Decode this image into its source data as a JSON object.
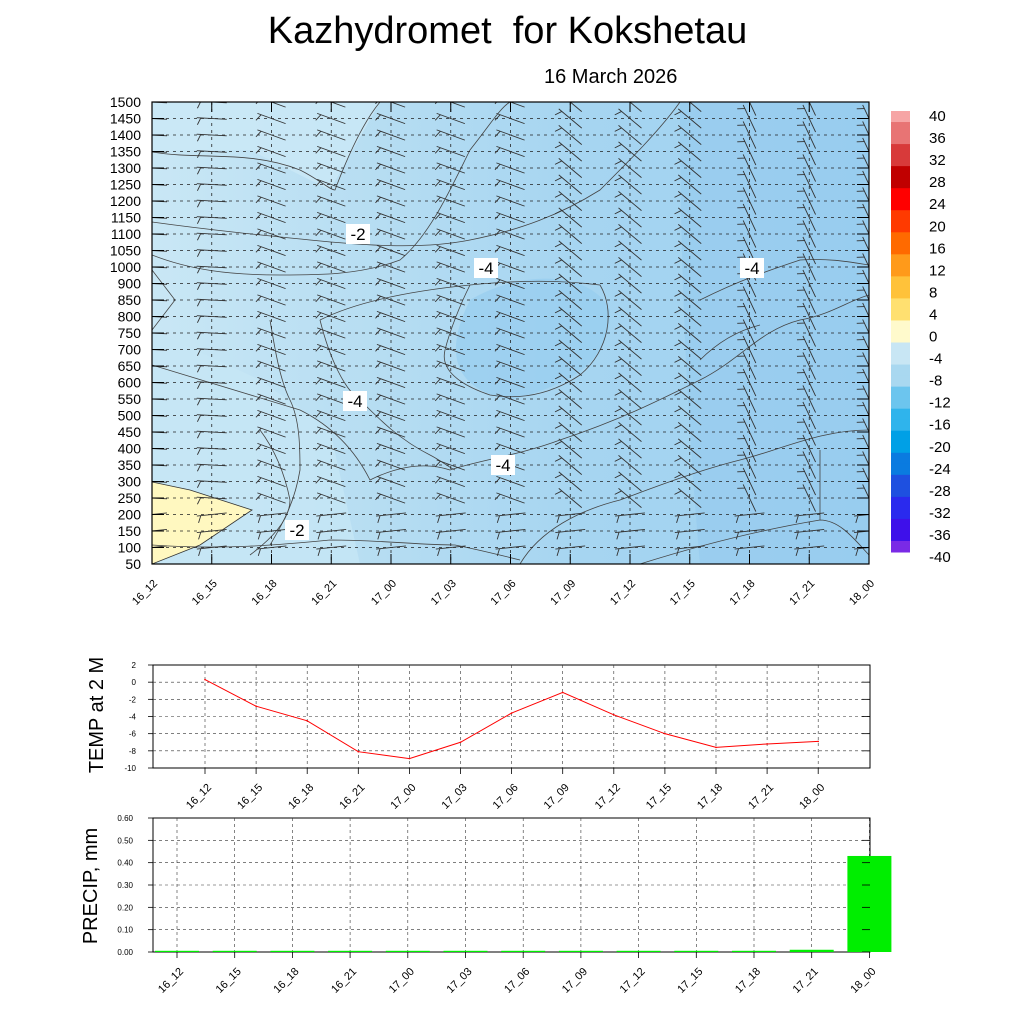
{
  "title": "Kazhydromet  for Kokshetau",
  "subtitle": "16 March 2026",
  "chart_data": [
    {
      "type": "heatmap",
      "name": "Temperature cross-section with wind barbs",
      "x_labels": [
        "16_12",
        "16_15",
        "16_18",
        "16_21",
        "17_00",
        "17_03",
        "17_06",
        "17_09",
        "17_12",
        "17_15",
        "17_18",
        "17_21",
        "18_00"
      ],
      "y_labels": [
        "50",
        "100",
        "150",
        "200",
        "250",
        "300",
        "350",
        "400",
        "450",
        "500",
        "550",
        "600",
        "650",
        "700",
        "750",
        "800",
        "850",
        "900",
        "1000",
        "1050",
        "1100",
        "1150",
        "1200",
        "1250",
        "1300",
        "1350",
        "1400",
        "1450",
        "1500"
      ],
      "contour_labels": [
        "-2",
        "-4",
        "-4",
        "-4",
        "-4",
        "-2"
      ],
      "colorbar": {
        "labels": [
          "40",
          "36",
          "32",
          "28",
          "24",
          "20",
          "16",
          "12",
          "8",
          "4",
          "0",
          "-4",
          "-8",
          "-12",
          "-16",
          "-20",
          "-24",
          "-28",
          "-32",
          "-36",
          "-40"
        ],
        "colors": [
          "#f6a5a5",
          "#e87474",
          "#d83a3a",
          "#c00000",
          "#ff0000",
          "#ff3a00",
          "#ff6a00",
          "#ff9a1a",
          "#ffc23a",
          "#ffe070",
          "#fffacc",
          "#c8e6f4",
          "#a9d8f0",
          "#6cc5ee",
          "#2fb4ec",
          "#00a0e6",
          "#0a7be0",
          "#1e50e0",
          "#2a2aee",
          "#3e10ea",
          "#7a2ae6"
        ]
      }
    },
    {
      "type": "line",
      "ylabel": "TEMP at 2 M",
      "categories": [
        "16_12",
        "16_15",
        "16_18",
        "16_21",
        "17_00",
        "17_03",
        "17_06",
        "17_09",
        "17_12",
        "17_15",
        "17_18",
        "17_21",
        "18_00"
      ],
      "values": [
        0.3,
        -2.8,
        -4.5,
        -8.1,
        -8.9,
        -7.0,
        -3.6,
        -1.2,
        -3.8,
        -6.0,
        -7.6,
        -7.2,
        -6.9
      ],
      "y_ticks": [
        "2",
        "0",
        "-2",
        "-4",
        "-6",
        "-8",
        "-10"
      ],
      "ylim": [
        -10,
        2
      ],
      "line_color": "#ff0000"
    },
    {
      "type": "bar",
      "ylabel": "PRECIP, mm",
      "categories": [
        "16_12",
        "16_15",
        "16_18",
        "16_21",
        "17_00",
        "17_03",
        "17_06",
        "17_09",
        "17_12",
        "17_15",
        "17_18",
        "17_21",
        "18_00"
      ],
      "values": [
        0,
        0,
        0,
        0,
        0,
        0,
        0,
        0,
        0,
        0,
        0,
        0.01,
        0.43
      ],
      "y_ticks": [
        "0.60",
        "0.50",
        "0.40",
        "0.30",
        "0.20",
        "0.10",
        "0.00"
      ],
      "ylim": [
        0,
        0.6
      ],
      "bar_color": "#00ee00"
    }
  ]
}
